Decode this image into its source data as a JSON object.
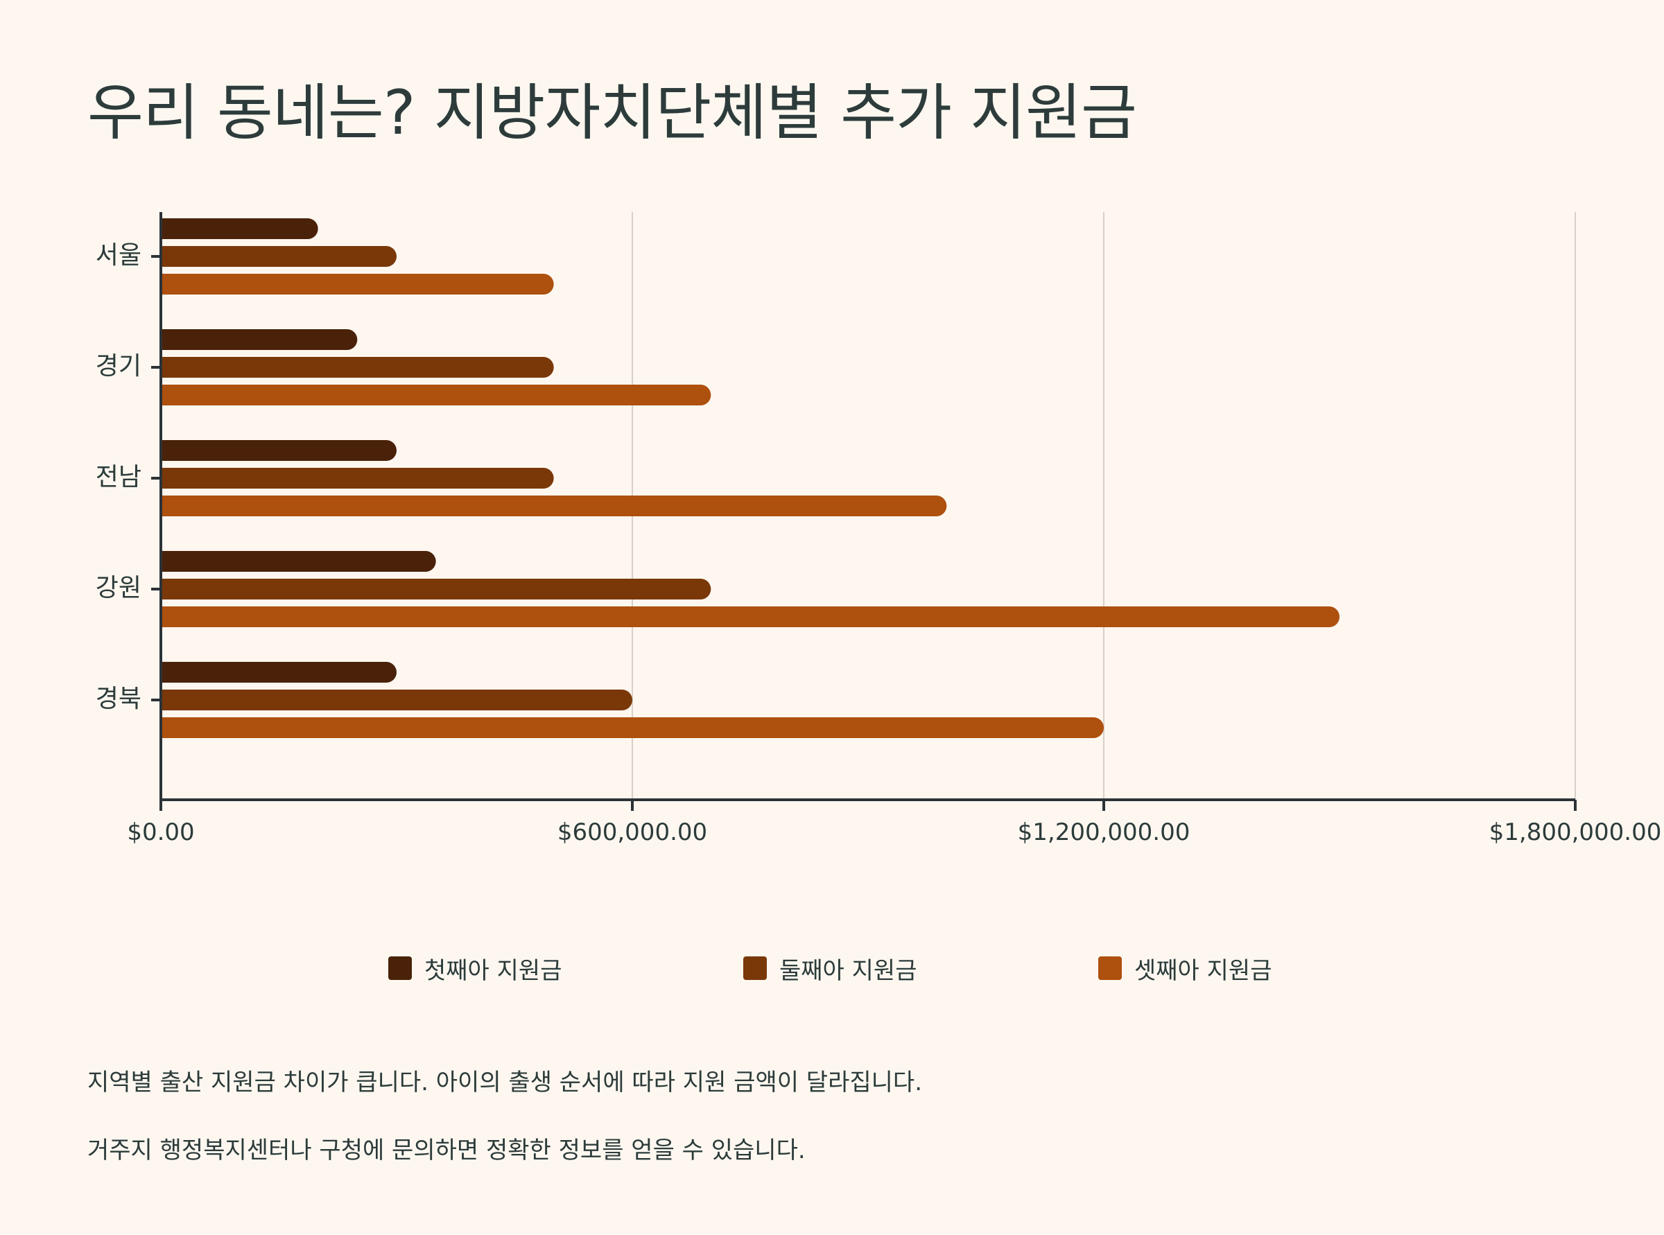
{
  "title": "우리 동네는? 지방자치단체별 추가 지원금",
  "chart_data": {
    "type": "bar",
    "orientation": "horizontal",
    "title": "우리 동네는? 지방자치단체별 추가 지원금",
    "categories": [
      "서울",
      "경기",
      "전남",
      "강원",
      "경북"
    ],
    "series": [
      {
        "name": "첫째아 지원금",
        "color": "#4a2209",
        "values": [
          200000,
          250000,
          300000,
          350000,
          300000
        ]
      },
      {
        "name": "둘째아 지원금",
        "color": "#7a3809",
        "values": [
          300000,
          500000,
          500000,
          700000,
          600000
        ]
      },
      {
        "name": "셋째아 지원금",
        "color": "#ae500e",
        "values": [
          500000,
          700000,
          1000000,
          1500000,
          1200000
        ]
      }
    ],
    "xlim": [
      0,
      1800000
    ],
    "xticks": [
      0,
      600000,
      1200000,
      1800000
    ],
    "xtick_labels": [
      "$0.00",
      "$600,000.00",
      "$1,200,000.00",
      "$1,800,000.00"
    ],
    "grid": "vertical",
    "legend_position": "bottom"
  },
  "notes": [
    "지역별 출산 지원금 차이가 큽니다. 아이의 출생 순서에 따라 지원 금액이 달라집니다.",
    "거주지 행정복지센터나 구청에 문의하면 정확한 정보를 얻을 수 있습니다."
  ]
}
